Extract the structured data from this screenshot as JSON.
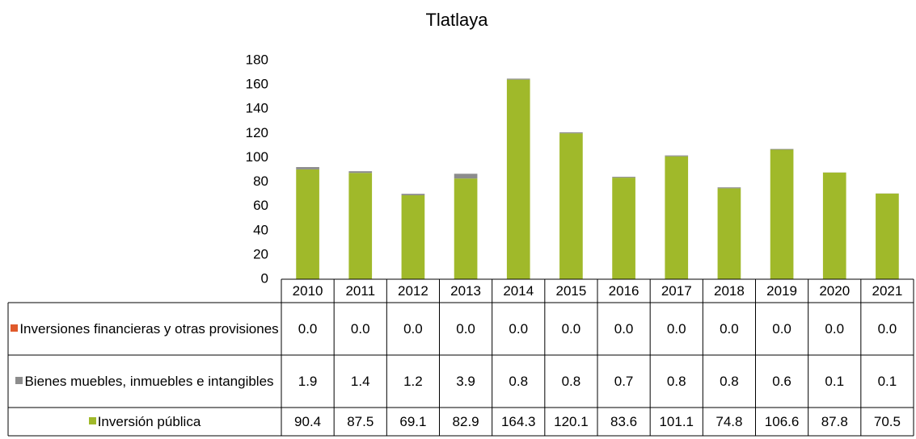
{
  "chart_data": {
    "type": "bar",
    "stacked": true,
    "title": "Tlatlaya",
    "categories": [
      "2010",
      "2011",
      "2012",
      "2013",
      "2014",
      "2015",
      "2016",
      "2017",
      "2018",
      "2019",
      "2020",
      "2021"
    ],
    "series": [
      {
        "name": "Inversiones financieras y otras provisiones",
        "color": "#e05a2b",
        "values": [
          0,
          0,
          0,
          0,
          0,
          0,
          0,
          0,
          0,
          0,
          0,
          0
        ],
        "value_labels": [
          "0.0",
          "0.0",
          "0.0",
          "0.0",
          "0.0",
          "0.0",
          "0.0",
          "0.0",
          "0.0",
          "0.0",
          "0.0",
          "0.0"
        ]
      },
      {
        "name": "Bienes muebles, inmuebles e intangibles",
        "color": "#8c8c8c",
        "values": [
          1.9,
          1.4,
          1.2,
          3.9,
          0.8,
          0.8,
          0.7,
          0.8,
          0.8,
          0.6,
          0.1,
          0.1
        ]
      },
      {
        "name": "Inversión pública",
        "color": "#a0b92a",
        "values": [
          90.4,
          87.5,
          69.1,
          82.9,
          164.3,
          120.1,
          83.6,
          101.1,
          74.8,
          106.6,
          87.8,
          70.5
        ]
      }
    ],
    "ylim": [
      0,
      180
    ],
    "yticks": [
      0,
      20,
      40,
      60,
      80,
      100,
      120,
      140,
      160,
      180
    ],
    "grid": false
  }
}
